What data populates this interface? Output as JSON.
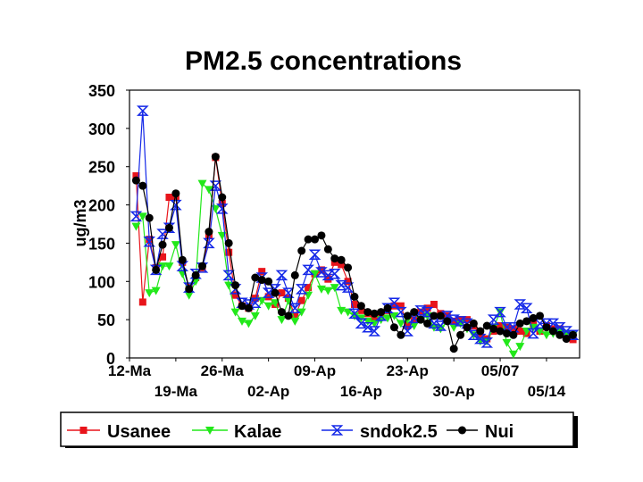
{
  "chart_data": {
    "type": "line",
    "title": "PM2.5 concentrations",
    "ylabel": "ug/m3",
    "xlabel": "",
    "ylim": [
      0,
      350
    ],
    "y_ticks": [
      0,
      50,
      100,
      150,
      200,
      250,
      300,
      350
    ],
    "x_tick_labels_row1": [
      "12-Ma",
      "26-Ma",
      "09-Ap",
      "23-Ap",
      "05/07"
    ],
    "x_tick_labels_row2": [
      "19-Ma",
      "02-Ap",
      "16-Ap",
      "30-Ap",
      "05/14"
    ],
    "x_range_days": [
      0,
      68
    ],
    "grid": false,
    "legend_position": "bottom",
    "series": [
      {
        "name": "Usanee",
        "color": "#e8141b",
        "marker": "square",
        "x": [
          1,
          2,
          3,
          4,
          5,
          6,
          7,
          8,
          9,
          10,
          11,
          12,
          13,
          14,
          15,
          16,
          17,
          18,
          19,
          20,
          21,
          22,
          23,
          24,
          25,
          26,
          27,
          28,
          29,
          30,
          31,
          32,
          33,
          34,
          35,
          36,
          37,
          38,
          39,
          40,
          41,
          42,
          43,
          44,
          45,
          46,
          47,
          48,
          49,
          50,
          51,
          52,
          53,
          54,
          55,
          56,
          57,
          58,
          59,
          60,
          61,
          62,
          63,
          64,
          65,
          66,
          67
        ],
        "y": [
          238,
          73,
          155,
          118,
          132,
          210,
          210,
          125,
          92,
          105,
          118,
          160,
          262,
          202,
          138,
          82,
          68,
          65,
          78,
          113,
          80,
          70,
          85,
          78,
          55,
          75,
          92,
          110,
          115,
          103,
          125,
          122,
          100,
          70,
          62,
          58,
          52,
          58,
          62,
          68,
          68,
          42,
          50,
          60,
          65,
          70,
          58,
          55,
          48,
          50,
          50,
          42,
          30,
          25,
          35,
          42,
          40,
          38,
          35,
          32,
          45,
          35,
          42,
          38,
          38,
          28,
          24
        ]
      },
      {
        "name": "Kalae",
        "color": "#22e81a",
        "marker": "triangle-down",
        "x": [
          1,
          2,
          3,
          4,
          5,
          6,
          7,
          8,
          9,
          10,
          11,
          12,
          13,
          14,
          15,
          16,
          17,
          18,
          19,
          20,
          21,
          22,
          23,
          24,
          25,
          26,
          27,
          28,
          29,
          30,
          31,
          32,
          33,
          34,
          35,
          36,
          37,
          38,
          39,
          40,
          41,
          42,
          43,
          44,
          45,
          46,
          47,
          48,
          49,
          50,
          51,
          52,
          53,
          54,
          55,
          56,
          57,
          58,
          59,
          60,
          61,
          62,
          63,
          64,
          65,
          66,
          67
        ],
        "y": [
          172,
          185,
          85,
          88,
          120,
          120,
          148,
          110,
          82,
          100,
          228,
          220,
          195,
          160,
          95,
          60,
          48,
          45,
          55,
          75,
          68,
          72,
          50,
          75,
          48,
          60,
          82,
          110,
          90,
          88,
          92,
          62,
          60,
          55,
          52,
          48,
          45,
          50,
          52,
          55,
          45,
          50,
          42,
          50,
          55,
          40,
          38,
          48,
          40,
          45,
          38,
          30,
          22,
          22,
          40,
          60,
          20,
          5,
          15,
          35,
          40,
          35,
          30,
          32,
          35,
          32,
          30
        ]
      },
      {
        "name": "sndok2.5",
        "color": "#1428e8",
        "marker": "bowtie",
        "x": [
          1,
          2,
          3,
          4,
          5,
          6,
          7,
          8,
          9,
          10,
          11,
          12,
          13,
          14,
          15,
          16,
          17,
          18,
          19,
          20,
          21,
          22,
          23,
          24,
          25,
          26,
          27,
          28,
          29,
          30,
          31,
          32,
          33,
          34,
          35,
          36,
          37,
          38,
          39,
          40,
          41,
          42,
          43,
          44,
          45,
          46,
          47,
          48,
          49,
          50,
          51,
          52,
          53,
          54,
          55,
          56,
          57,
          58,
          59,
          60,
          61,
          62,
          63,
          64,
          65,
          66,
          67
        ],
        "y": [
          185,
          323,
          152,
          115,
          162,
          170,
          200,
          120,
          92,
          110,
          118,
          150,
          225,
          195,
          108,
          90,
          72,
          70,
          72,
          105,
          85,
          90,
          108,
          85,
          65,
          90,
          115,
          135,
          112,
          108,
          110,
          95,
          92,
          58,
          45,
          40,
          35,
          55,
          65,
          72,
          60,
          35,
          52,
          62,
          60,
          45,
          42,
          55,
          50,
          48,
          45,
          30,
          25,
          20,
          50,
          60,
          40,
          40,
          70,
          65,
          32,
          45,
          45,
          45,
          40,
          35,
          30
        ]
      },
      {
        "name": "Nui",
        "color": "#000000",
        "marker": "circle",
        "x": [
          1,
          2,
          3,
          4,
          5,
          6,
          7,
          8,
          9,
          10,
          11,
          12,
          13,
          14,
          15,
          16,
          17,
          18,
          19,
          20,
          21,
          22,
          23,
          24,
          25,
          26,
          27,
          28,
          29,
          30,
          31,
          32,
          33,
          34,
          35,
          36,
          37,
          38,
          39,
          40,
          41,
          42,
          43,
          44,
          45,
          46,
          47,
          48,
          49,
          50,
          51,
          52,
          53,
          54,
          55,
          56,
          57,
          58,
          59,
          60,
          61,
          62,
          63,
          64,
          65,
          66,
          67
        ],
        "y": [
          232,
          225,
          183,
          115,
          148,
          170,
          215,
          128,
          90,
          108,
          120,
          165,
          263,
          210,
          150,
          95,
          68,
          65,
          105,
          102,
          100,
          85,
          60,
          55,
          108,
          140,
          155,
          155,
          160,
          142,
          130,
          128,
          118,
          80,
          68,
          60,
          58,
          60,
          65,
          40,
          30,
          55,
          60,
          50,
          45,
          55,
          55,
          48,
          12,
          30,
          40,
          45,
          35,
          42,
          38,
          35,
          32,
          30,
          45,
          48,
          52,
          55,
          40,
          35,
          30,
          25,
          30
        ]
      }
    ]
  }
}
